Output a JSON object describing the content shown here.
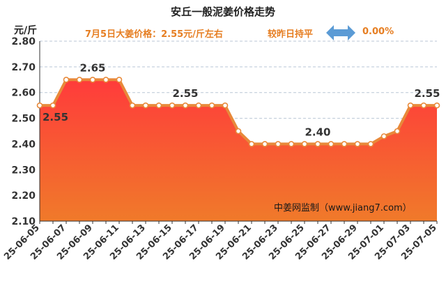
{
  "title": "安丘一般泥姜价格走势",
  "unit": "元/斤",
  "subtitle": "7月5日大姜价格：2.55元/斤左右",
  "compare_label": "较昨日持平",
  "change_value": "0.00%",
  "watermark": "中姜网监制（www.jiang7.com）",
  "colors": {
    "line": "#e8893a",
    "fill_top": "#ff3b3b",
    "fill_bottom": "#f07a2a",
    "arrow": "#5b9bd5",
    "accent": "#e67e22"
  },
  "chart_data": {
    "type": "area",
    "title": "安丘一般泥姜价格走势",
    "ylabel": "元/斤",
    "xlabel": "",
    "ylim": [
      2.1,
      2.8
    ],
    "yticks": [
      "2.10",
      "2.20",
      "2.30",
      "2.40",
      "2.50",
      "2.60",
      "2.70",
      "2.80"
    ],
    "x": [
      "25-06-05",
      "25-06-06",
      "25-06-07",
      "25-06-08",
      "25-06-09",
      "25-06-10",
      "25-06-11",
      "25-06-12",
      "25-06-13",
      "25-06-14",
      "25-06-15",
      "25-06-16",
      "25-06-17",
      "25-06-18",
      "25-06-19",
      "25-06-20",
      "25-06-21",
      "25-06-22",
      "25-06-23",
      "25-06-24",
      "25-06-25",
      "25-06-26",
      "25-06-27",
      "25-06-28",
      "25-06-29",
      "25-06-30",
      "25-07-01",
      "25-07-02",
      "25-07-03",
      "25-07-04",
      "25-07-05"
    ],
    "xtick_labels": [
      "25-06-05",
      "25-06-07",
      "25-06-09",
      "25-06-11",
      "25-06-13",
      "25-06-15",
      "25-06-17",
      "25-06-19",
      "25-06-21",
      "25-06-23",
      "25-06-25",
      "25-06-27",
      "25-06-29",
      "25-07-01",
      "25-07-03",
      "25-07-05"
    ],
    "values": [
      2.55,
      2.55,
      2.65,
      2.65,
      2.65,
      2.65,
      2.65,
      2.55,
      2.55,
      2.55,
      2.55,
      2.55,
      2.55,
      2.55,
      2.55,
      2.45,
      2.4,
      2.4,
      2.4,
      2.4,
      2.4,
      2.4,
      2.4,
      2.4,
      2.4,
      2.4,
      2.43,
      2.45,
      2.55,
      2.55,
      2.55
    ],
    "data_labels": [
      {
        "index": 0,
        "text": "2.55"
      },
      {
        "index": 4,
        "text": "2.65"
      },
      {
        "index": 11,
        "text": "2.55"
      },
      {
        "index": 21,
        "text": "2.40"
      },
      {
        "index": 30,
        "text": "2.55"
      }
    ],
    "grid": true
  }
}
